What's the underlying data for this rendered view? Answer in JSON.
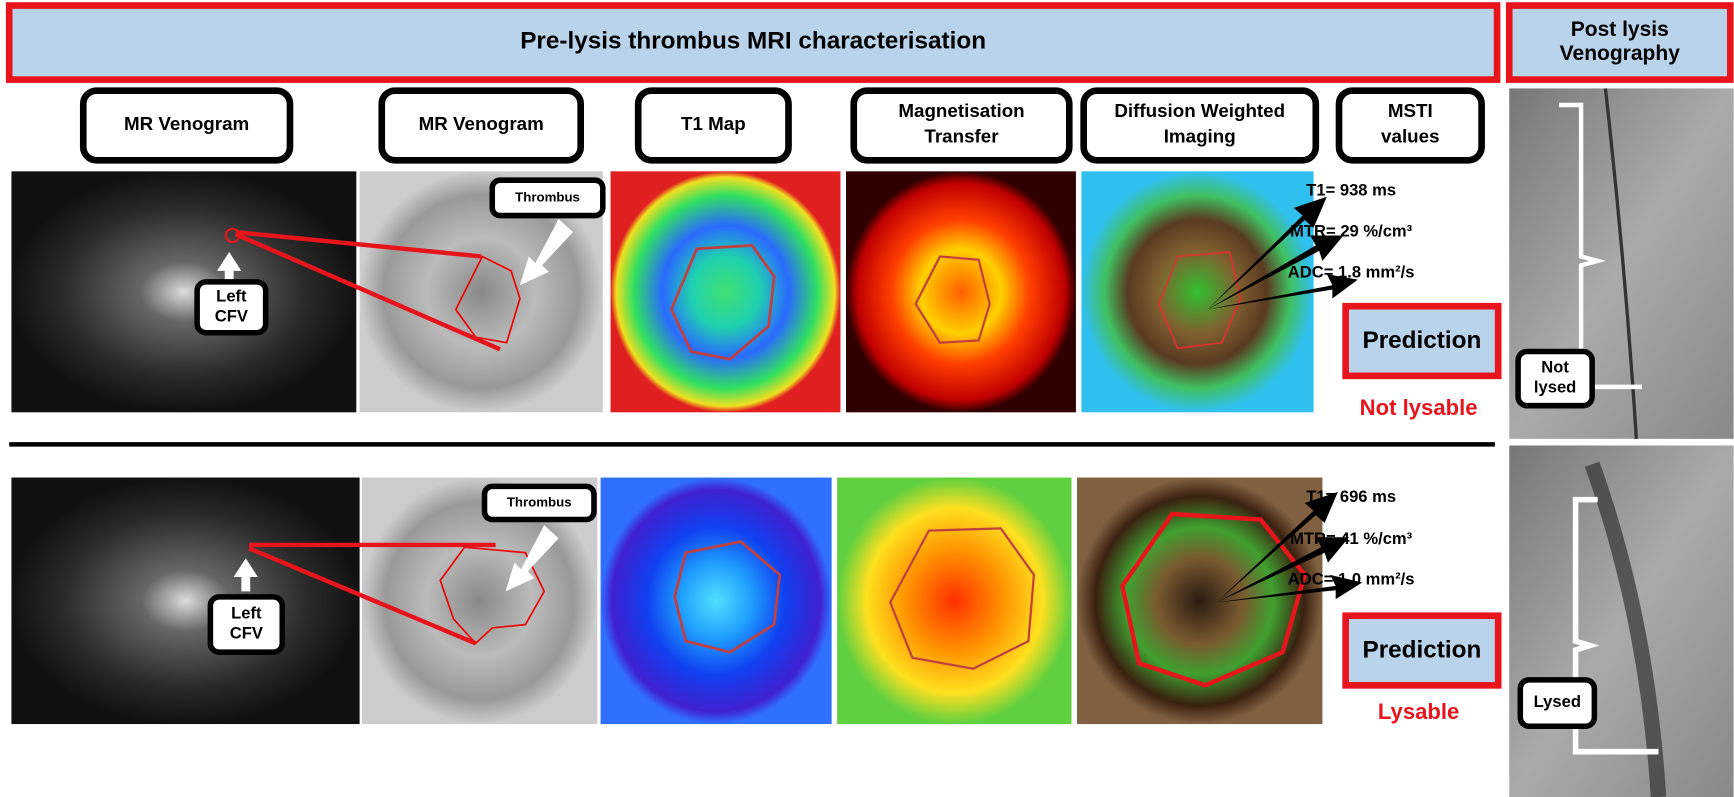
{
  "header": {
    "title": "Pre-lysis thrombus MRI characterisation",
    "side_title": [
      "Post lysis",
      "Venography"
    ]
  },
  "columns": [
    [
      "MR Venogram"
    ],
    [
      "MR Venogram"
    ],
    [
      "T1 Map"
    ],
    [
      "Magnetisation",
      "Transfer"
    ],
    [
      "Diffusion Weighted",
      "Imaging"
    ],
    [
      "MSTI",
      "values"
    ]
  ],
  "rows": [
    {
      "vessel_label": [
        "Left",
        "CFV"
      ],
      "thrombus_label": "Thrombus",
      "msti": [
        "T1= 938 ms",
        "MTR= 29 %/cm³",
        "ADC= 1.8 mm²/s"
      ],
      "prediction": "Prediction",
      "outcome": "Not lysable",
      "venography_label": [
        "Not",
        "lysed"
      ]
    },
    {
      "vessel_label": [
        "Left",
        "CFV"
      ],
      "thrombus_label": "Thrombus",
      "msti": [
        "T1= 696 ms",
        "MTR= 41 %/cm³",
        "ADC= 1.0 mm²/s"
      ],
      "prediction": "Prediction",
      "outcome": "Lysable",
      "venography_label": [
        "Lysed"
      ]
    }
  ]
}
